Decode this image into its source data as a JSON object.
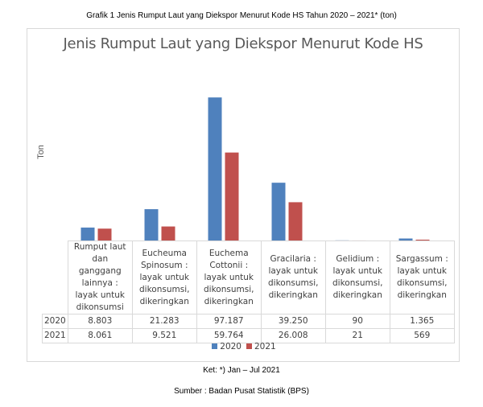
{
  "caption": "Grafik 1 Jenis Rumput Laut yang Diekspor Menurut Kode HS Tahun 2020 – 2021*  (ton)",
  "note": "Ket: *) Jan – Jul 2021",
  "source": "Sumber : Badan Pusat Statistik (BPS)",
  "chart_data": {
    "type": "bar",
    "title": "Jenis Rumput Laut yang Diekspor Menurut Kode HS",
    "ylabel": "Ton",
    "xlabel": "",
    "ylim": [
      0,
      100000
    ],
    "categories": [
      "Rumput laut dan ganggang lainnya : layak untuk dikonsumsi",
      "Eucheuma Spinosum : layak untuk dikonsumsi, dikeringkan",
      "Euchema Cottonii : layak untuk dikonsumsi, dikeringkan",
      "Gracilaria : layak untuk dikonsumsi, dikeringkan",
      "Gelidium : layak untuk dikonsumsi, dikeringkan",
      "Sargassum : layak untuk dikonsumsi, dikeringkan"
    ],
    "series": [
      {
        "name": "2020",
        "color": "#4f81bd",
        "values": [
          8803,
          21283,
          97187,
          39250,
          90,
          1365
        ],
        "labels": [
          "8.803",
          "21.283",
          "97.187",
          "39.250",
          "90",
          "1.365"
        ]
      },
      {
        "name": "2021",
        "color": "#c0504d",
        "values": [
          8061,
          9521,
          59764,
          26008,
          21,
          569
        ],
        "labels": [
          "8.061",
          "9.521",
          "59.764",
          "26.008",
          "21",
          "569"
        ]
      }
    ],
    "legend": "bottom"
  }
}
